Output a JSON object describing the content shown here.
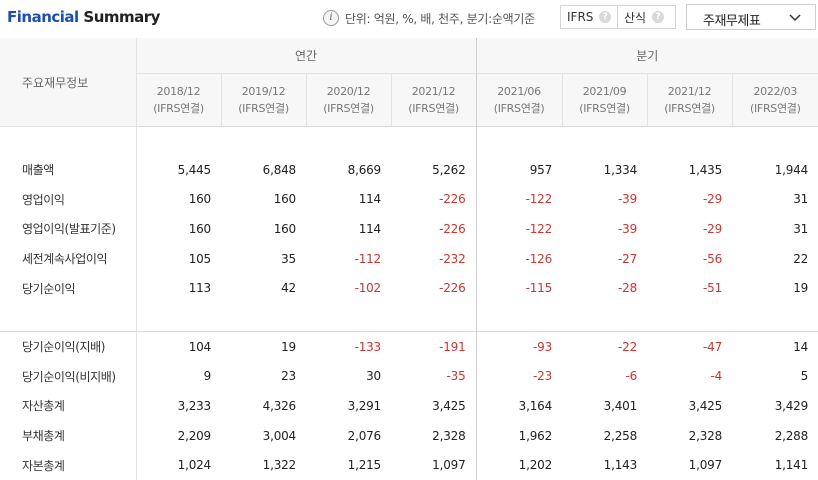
{
  "header": {
    "title_highlight": "Financial",
    "title_rest": " Summary",
    "info_icon": "i",
    "unit_text": "단위: 억원, %, 배, 천주, 분기:순액기준",
    "btn_ifrs": "IFRS",
    "btn_method": "산식",
    "help_glyph": "?",
    "select_value": "주재무제표"
  },
  "table": {
    "row_header_label": "주요재무정보",
    "group_annual": "연간",
    "group_quarter": "분기",
    "periods": [
      {
        "date": "2018/12",
        "basis": "(IFRS연결)"
      },
      {
        "date": "2019/12",
        "basis": "(IFRS연결)"
      },
      {
        "date": "2020/12",
        "basis": "(IFRS연결)"
      },
      {
        "date": "2021/12",
        "basis": "(IFRS연결)"
      },
      {
        "date": "2021/06",
        "basis": "(IFRS연결)"
      },
      {
        "date": "2021/09",
        "basis": "(IFRS연결)"
      },
      {
        "date": "2021/12",
        "basis": "(IFRS연결)"
      },
      {
        "date": "2022/03",
        "basis": "(IFRS연결)"
      }
    ],
    "group1": [
      {
        "label": "매출액",
        "values": [
          "5,445",
          "6,848",
          "8,669",
          "5,262",
          "957",
          "1,334",
          "1,435",
          "1,944"
        ]
      },
      {
        "label": "영업이익",
        "values": [
          "160",
          "160",
          "114",
          "-226",
          "-122",
          "-39",
          "-29",
          "31"
        ]
      },
      {
        "label": "영업이익(발표기준)",
        "values": [
          "160",
          "160",
          "114",
          "-226",
          "-122",
          "-39",
          "-29",
          "31"
        ]
      },
      {
        "label": "세전계속사업이익",
        "values": [
          "105",
          "35",
          "-112",
          "-232",
          "-126",
          "-27",
          "-56",
          "22"
        ]
      },
      {
        "label": "당기순이익",
        "values": [
          "113",
          "42",
          "-102",
          "-226",
          "-115",
          "-28",
          "-51",
          "19"
        ]
      }
    ],
    "group2": [
      {
        "label": "당기순이익(지배)",
        "values": [
          "104",
          "19",
          "-133",
          "-191",
          "-93",
          "-22",
          "-47",
          "14"
        ]
      },
      {
        "label": "당기순이익(비지배)",
        "values": [
          "9",
          "23",
          "30",
          "-35",
          "-23",
          "-6",
          "-4",
          "5"
        ]
      },
      {
        "label": "자산총계",
        "values": [
          "3,233",
          "4,326",
          "3,291",
          "3,425",
          "3,164",
          "3,401",
          "3,425",
          "3,429"
        ]
      },
      {
        "label": "부채총계",
        "values": [
          "2,209",
          "3,004",
          "2,076",
          "2,328",
          "1,962",
          "2,258",
          "2,328",
          "2,288"
        ]
      },
      {
        "label": "자본총계",
        "values": [
          "1,024",
          "1,322",
          "1,215",
          "1,097",
          "1,202",
          "1,143",
          "1,097",
          "1,141"
        ]
      }
    ]
  },
  "colors": {
    "accent": "#1b4fb8",
    "negative": "#d7322b",
    "header_bg": "#f7f7f7"
  }
}
